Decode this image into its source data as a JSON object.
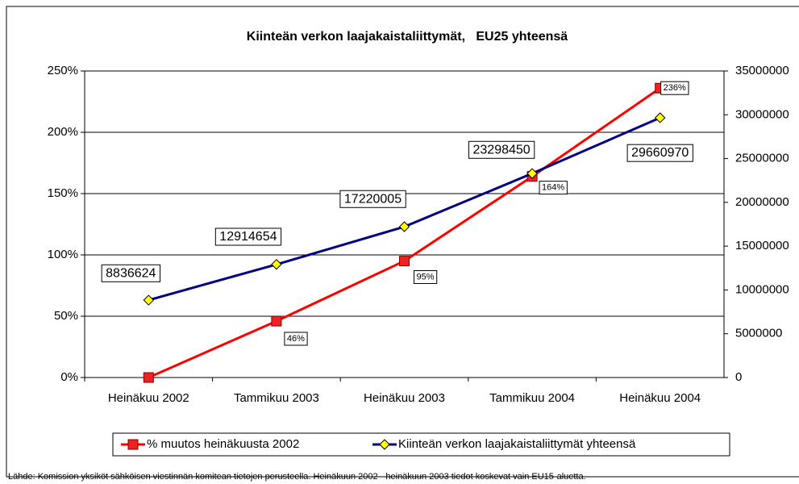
{
  "chart_data": {
    "type": "line",
    "title": "Kiinteän verkon laajakaistaliittymät,   EU25 yhteensä",
    "categories": [
      "Heinäkuu 2002",
      "Tammikuu 2003",
      "Heinäkuu 2003",
      "Tammikuu 2004",
      "Heinäkuu 2004"
    ],
    "series": [
      {
        "name": "% muutos heinäkuusta 2002",
        "color": "#ff0000",
        "marker_color": "#ee2222",
        "values": [
          0,
          46,
          95,
          164,
          236
        ],
        "value_labels": [
          null,
          "46%",
          "95%",
          "164%",
          "236%"
        ]
      },
      {
        "name": "Kiinteän verkon laajakaistaliittymät yhteensä",
        "color": "#000080",
        "marker_color": "#ffff00",
        "axis": "y2",
        "values": [
          8836624,
          12914654,
          17220005,
          23298450,
          29660970
        ]
      }
    ],
    "ylim": [
      0,
      250
    ],
    "yticks": [
      {
        "value": 0,
        "label": "0%"
      },
      {
        "value": 50,
        "label": "50%"
      },
      {
        "value": 100,
        "label": "100%"
      },
      {
        "value": 150,
        "label": "150%"
      },
      {
        "value": 200,
        "label": "200%"
      },
      {
        "value": 250,
        "label": "250%"
      }
    ],
    "y2lim": [
      0,
      35000000
    ],
    "y2ticks": [
      0,
      5000000,
      10000000,
      15000000,
      20000000,
      25000000,
      30000000,
      35000000
    ],
    "grid": true,
    "legend": "bottom",
    "source": "Lähde: Komission yksiköt sähköisen viestinnän komitean tietojen perusteella. Heinäkuun 2002 - heinäkuun 2003 tiedot koskevat vain EU15-aluetta."
  }
}
